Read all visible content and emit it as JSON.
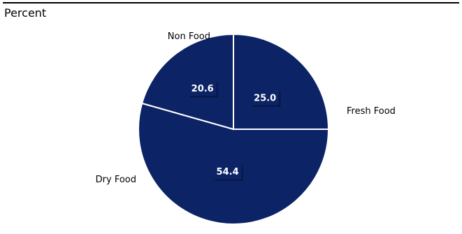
{
  "header": {
    "unit_label": "Percent"
  },
  "colors": {
    "slice_fill": "#0c2366",
    "slice_border": "#ffffff",
    "label_box": "#0c2366",
    "rule": "#000000"
  },
  "chart_data": {
    "type": "pie",
    "title": "",
    "start": "12 o'clock, clockwise",
    "slices": [
      {
        "label": "Fresh Food",
        "value": 25.0,
        "display": "25.0"
      },
      {
        "label": "Dry Food",
        "value": 54.4,
        "display": "54.4"
      },
      {
        "label": "Non Food",
        "value": 20.6,
        "display": "20.6"
      }
    ]
  }
}
